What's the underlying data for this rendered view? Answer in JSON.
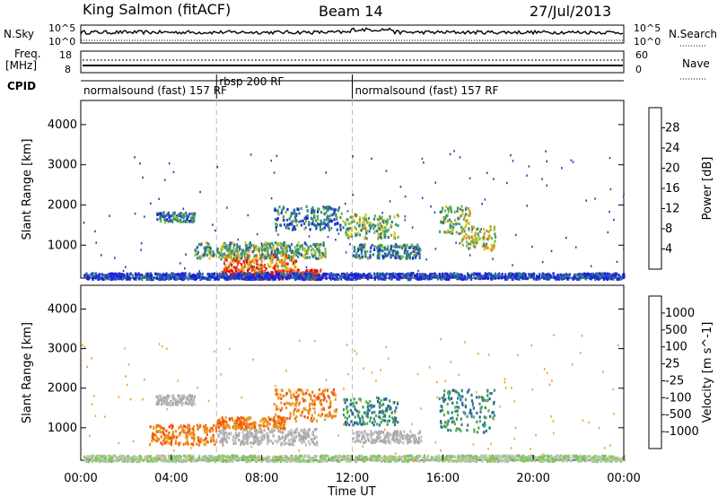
{
  "header": {
    "station": "King Salmon (fitACF)",
    "beam": "Beam 14",
    "date": "27/Jul/2013"
  },
  "strip_labels": {
    "nsky": "N.Sky",
    "nsearch": "N.Search",
    "freq_line1": "Freq.",
    "freq_line2": "[MHz]",
    "nave": "Nave",
    "cpid": "CPID",
    "noise_ticks_left": [
      "10^5",
      "10^0"
    ],
    "noise_ticks_right": [
      "10^5",
      "10^0"
    ],
    "freq_ticks": [
      "18",
      "8"
    ],
    "nave_ticks": [
      "60",
      "0"
    ]
  },
  "cpid_segments": [
    {
      "label": "normalsound (fast) 157 RF",
      "start_h": 0
    },
    {
      "label": "rbsp 200 RF",
      "start_h": 6
    },
    {
      "label": "normalsound (fast) 157 RF",
      "start_h": 12
    }
  ],
  "chart_data": [
    {
      "type": "heatmap",
      "panel": "power",
      "ylabel": "Slant Range [km]",
      "ylim": [
        180,
        4600
      ],
      "yticks": [
        1000,
        2000,
        3000,
        4000
      ],
      "xlim_hours": [
        0,
        24
      ],
      "colorbar": {
        "label": "Power [dB]",
        "range": [
          0,
          32
        ],
        "ticks": [
          "4",
          "8",
          "12",
          "16",
          "20",
          "24",
          "28"
        ],
        "colors": [
          "#1f1fe0",
          "#2a4fb0",
          "#2e7a8a",
          "#3a9a6a",
          "#80b840",
          "#e0c020",
          "#f09020",
          "#f05020",
          "#e01010"
        ]
      },
      "regions": [
        {
          "t": [
            6.2,
            10.6
          ],
          "r": [
            180,
            420
          ],
          "level": 0.9
        },
        {
          "t": [
            6.3,
            9.5
          ],
          "r": [
            420,
            800
          ],
          "level": 0.75
        },
        {
          "t": [
            5.0,
            10.8
          ],
          "r": [
            700,
            1100
          ],
          "level": 0.4
        },
        {
          "t": [
            3.3,
            5.0
          ],
          "r": [
            1600,
            1850
          ],
          "level": 0.3
        },
        {
          "t": [
            8.5,
            11.5
          ],
          "r": [
            1400,
            2000
          ],
          "level": 0.25
        },
        {
          "t": [
            11.5,
            14.0
          ],
          "r": [
            1200,
            1800
          ],
          "level": 0.45
        },
        {
          "t": [
            12.0,
            15.0
          ],
          "r": [
            700,
            1050
          ],
          "level": 0.3
        },
        {
          "t": [
            15.8,
            17.2
          ],
          "r": [
            1300,
            2000
          ],
          "level": 0.5
        },
        {
          "t": [
            16.8,
            18.3
          ],
          "r": [
            900,
            1500
          ],
          "level": 0.55
        },
        {
          "t": [
            0.1,
            24.0
          ],
          "r": [
            180,
            330
          ],
          "level": 0.1
        }
      ]
    },
    {
      "type": "heatmap",
      "panel": "velocity",
      "ylabel": "Slant Range [km]",
      "ylim": [
        180,
        4600
      ],
      "yticks": [
        1000,
        2000,
        3000,
        4000
      ],
      "xlim_hours": [
        0,
        24
      ],
      "xlabel": "Time UT",
      "xticks": [
        "00:00",
        "04:00",
        "08:00",
        "12:00",
        "16:00",
        "20:00",
        "00:00"
      ],
      "colorbar": {
        "label": "Velocity [m s^-1]",
        "ticks": [
          "1000",
          "500",
          "100",
          "25",
          "-25",
          "-100",
          "-500",
          "-1000"
        ],
        "colors": [
          "#2030c0",
          "#2a5fb0",
          "#2f8a6a",
          "#55b040",
          "#a8a8a8",
          "#f0a020",
          "#f07010",
          "#f04010",
          "#e01010"
        ]
      },
      "regions": [
        {
          "t": [
            6.0,
            10.5
          ],
          "r": [
            600,
            1000
          ],
          "level": "grey"
        },
        {
          "t": [
            3.0,
            6.0
          ],
          "r": [
            600,
            1100
          ],
          "level": "orange"
        },
        {
          "t": [
            6.0,
            9.0
          ],
          "r": [
            1000,
            1300
          ],
          "level": "orange"
        },
        {
          "t": [
            3.3,
            5.0
          ],
          "r": [
            1600,
            1850
          ],
          "level": "grey"
        },
        {
          "t": [
            8.5,
            11.3
          ],
          "r": [
            1200,
            2000
          ],
          "level": "orange"
        },
        {
          "t": [
            11.5,
            14.0
          ],
          "r": [
            1100,
            1800
          ],
          "level": "green"
        },
        {
          "t": [
            15.8,
            18.3
          ],
          "r": [
            900,
            2000
          ],
          "level": "green"
        },
        {
          "t": [
            12.0,
            15.0
          ],
          "r": [
            650,
            950
          ],
          "level": "grey"
        },
        {
          "t": [
            0.1,
            24.0
          ],
          "r": [
            180,
            330
          ],
          "level": "green-light"
        }
      ]
    }
  ]
}
